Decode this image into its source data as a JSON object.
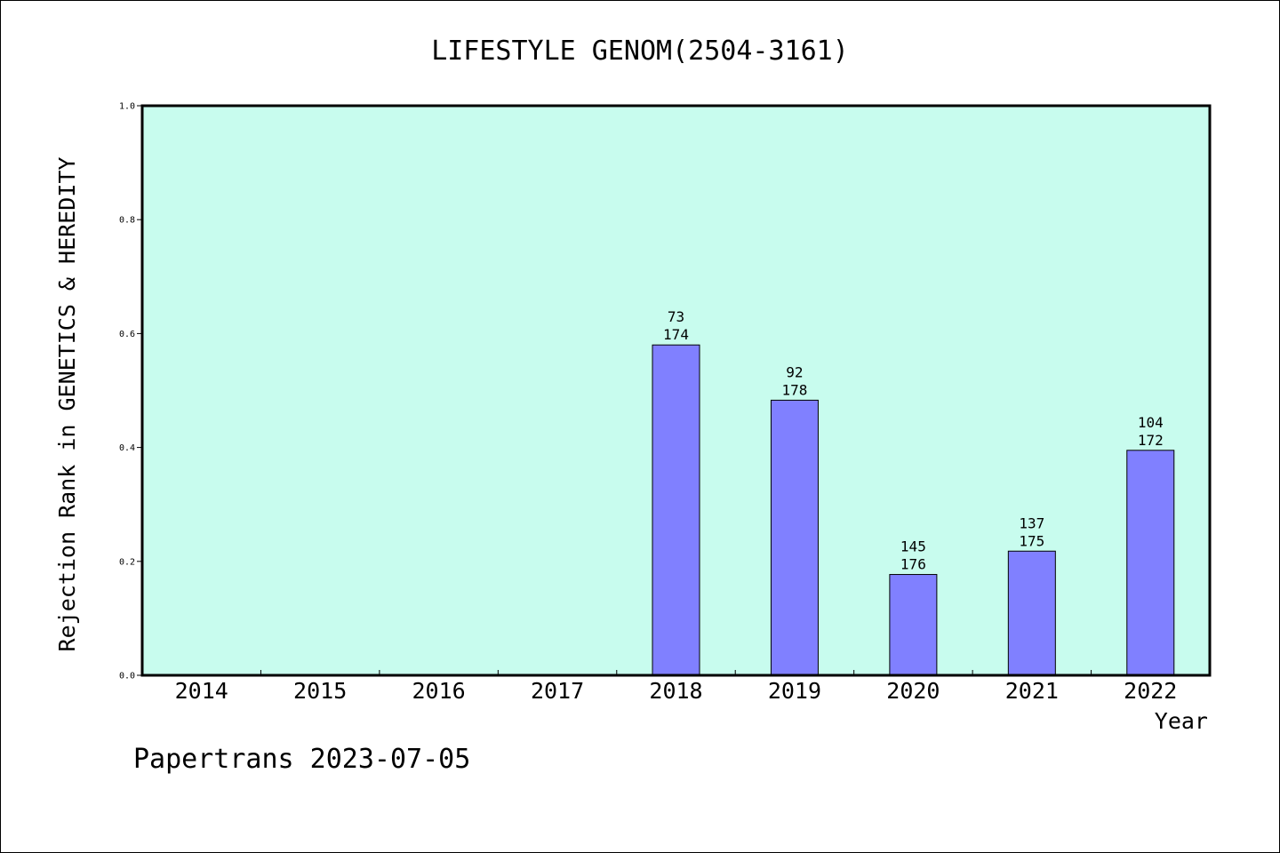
{
  "chart_data": {
    "type": "bar",
    "title": "LIFESTYLE GENOM(2504-3161)",
    "xlabel": "Year",
    "ylabel": "Rejection Rank in GENETICS & HEREDITY",
    "ylim": [
      0,
      1.0
    ],
    "yticks": [
      "0.0",
      "0.2",
      "0.4",
      "0.6",
      "0.8",
      "1.0"
    ],
    "categories": [
      "2014",
      "2015",
      "2016",
      "2017",
      "2018",
      "2019",
      "2020",
      "2021",
      "2022"
    ],
    "values": [
      null,
      null,
      null,
      null,
      0.58,
      0.483,
      0.177,
      0.218,
      0.395
    ],
    "labels_top": [
      "",
      "",
      "",
      "",
      "73",
      "92",
      "145",
      "137",
      "104"
    ],
    "labels_bottom": [
      "",
      "",
      "",
      "",
      "174",
      "178",
      "176",
      "175",
      "172"
    ],
    "grid": false,
    "colors": {
      "plot_bg": "#c8fcee",
      "bar": "#8080ff"
    }
  },
  "footer": "Papertrans 2023-07-05"
}
